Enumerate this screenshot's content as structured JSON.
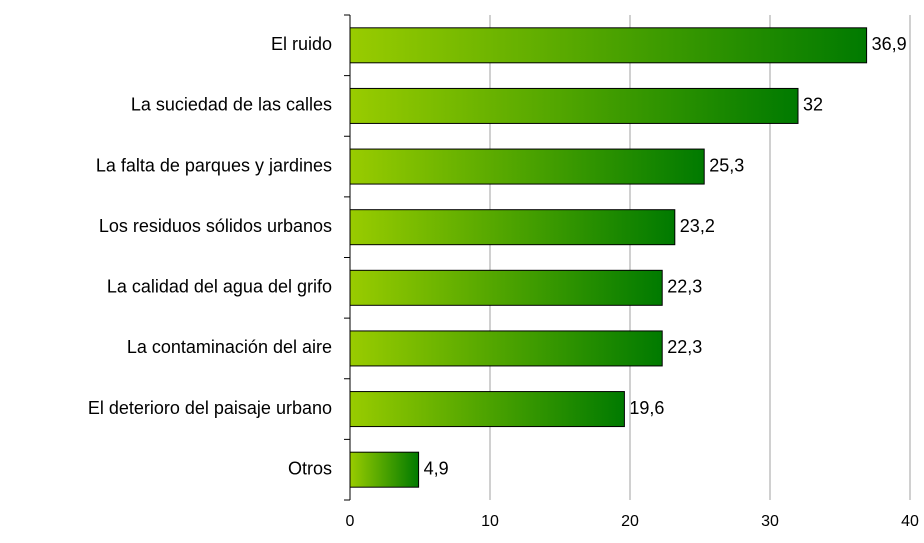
{
  "chart_data": {
    "type": "bar",
    "orientation": "horizontal",
    "categories": [
      "El ruido",
      "La suciedad de las calles",
      "La falta de parques y jardines",
      "Los residuos sólidos urbanos",
      "La calidad del agua del grifo",
      "La contaminación del aire",
      "El deterioro del paisaje urbano",
      "Otros"
    ],
    "values": [
      36.9,
      32,
      25.3,
      23.2,
      22.3,
      22.3,
      19.6,
      4.9
    ],
    "value_labels": [
      "36,9",
      "32",
      "25,3",
      "23,2",
      "22,3",
      "22,3",
      "19,6",
      "4,9"
    ],
    "gradient": [
      "#99cc00",
      "#007a00"
    ],
    "xlim": [
      0,
      40
    ],
    "xticks": [
      0,
      10,
      20,
      30,
      40
    ],
    "grid": true
  }
}
